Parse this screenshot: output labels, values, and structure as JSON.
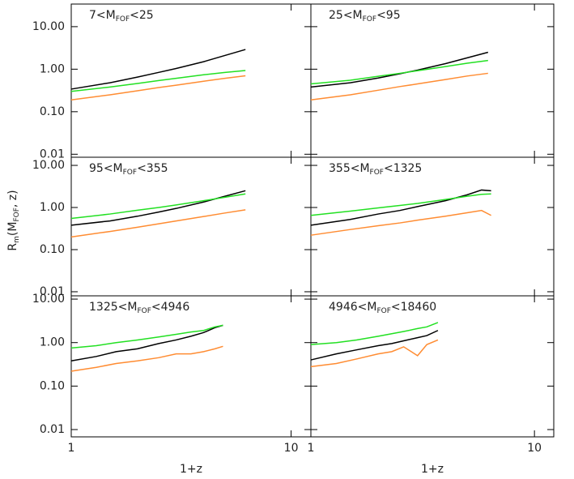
{
  "ylabel": [
    "R",
    "m",
    "(M",
    "FOF",
    ", z)"
  ],
  "chart_data": [
    {
      "type": "line",
      "title": [
        "7<M",
        "FOF",
        "<25"
      ],
      "xscale": "log",
      "yscale": "log",
      "xlim": [
        1,
        12.3
      ],
      "ylim": [
        0.0085,
        34
      ],
      "yticks": [
        {
          "value": 10,
          "label": "10.00"
        },
        {
          "value": 1,
          "label": "1.00"
        },
        {
          "value": 0.1,
          "label": "0.10"
        },
        {
          "value": 0.01,
          "label": "0.01"
        }
      ],
      "x": [
        1,
        1.5,
        2,
        2.5,
        3,
        4,
        5,
        6.2
      ],
      "series": [
        {
          "color": "#000000",
          "values": [
            0.34,
            0.48,
            0.65,
            0.84,
            1.04,
            1.5,
            2.1,
            2.9
          ]
        },
        {
          "color": "#22e022",
          "values": [
            0.3,
            0.38,
            0.46,
            0.54,
            0.61,
            0.74,
            0.84,
            0.93
          ]
        },
        {
          "color": "#ff8c32",
          "values": [
            0.19,
            0.25,
            0.31,
            0.37,
            0.42,
            0.52,
            0.61,
            0.7
          ]
        }
      ]
    },
    {
      "type": "line",
      "title": [
        "25<M",
        "FOF",
        "<95"
      ],
      "xscale": "log",
      "yscale": "log",
      "xlim": [
        1,
        12.2
      ],
      "ylim": [
        0.0085,
        34
      ],
      "x": [
        1,
        1.5,
        2,
        2.5,
        3,
        4,
        5,
        6.2
      ],
      "series": [
        {
          "color": "#000000",
          "values": [
            0.38,
            0.48,
            0.62,
            0.78,
            0.95,
            1.35,
            1.85,
            2.5
          ]
        },
        {
          "color": "#22e022",
          "values": [
            0.45,
            0.55,
            0.68,
            0.8,
            0.92,
            1.15,
            1.38,
            1.6
          ]
        },
        {
          "color": "#ff8c32",
          "values": [
            0.19,
            0.25,
            0.32,
            0.39,
            0.45,
            0.57,
            0.69,
            0.8
          ]
        }
      ]
    },
    {
      "type": "line",
      "title": [
        "95<M",
        "FOF",
        "<355"
      ],
      "xscale": "log",
      "yscale": "log",
      "xlim": [
        1,
        12.3
      ],
      "ylim": [
        0.008,
        15.6
      ],
      "yticks": [
        {
          "value": 10,
          "label": "10.00"
        },
        {
          "value": 1,
          "label": "1.00"
        },
        {
          "value": 0.1,
          "label": "0.10"
        },
        {
          "value": 0.01,
          "label": "0.01"
        }
      ],
      "x": [
        1,
        1.5,
        2,
        2.5,
        3,
        4,
        5,
        6.2
      ],
      "series": [
        {
          "color": "#000000",
          "values": [
            0.38,
            0.48,
            0.62,
            0.78,
            0.95,
            1.35,
            1.85,
            2.5
          ]
        },
        {
          "color": "#22e022",
          "values": [
            0.55,
            0.7,
            0.86,
            1.0,
            1.15,
            1.45,
            1.75,
            2.1
          ]
        },
        {
          "color": "#ff8c32",
          "values": [
            0.2,
            0.27,
            0.34,
            0.41,
            0.48,
            0.61,
            0.74,
            0.88
          ]
        }
      ]
    },
    {
      "type": "line",
      "title": [
        "355<M",
        "FOF",
        "<1325"
      ],
      "xscale": "log",
      "yscale": "log",
      "xlim": [
        1,
        12.2
      ],
      "ylim": [
        0.008,
        15.6
      ],
      "x": [
        1,
        1.5,
        2,
        2.5,
        3,
        4,
        5,
        5.8,
        6.4
      ],
      "series": [
        {
          "color": "#000000",
          "values": [
            0.38,
            0.52,
            0.7,
            0.85,
            1.05,
            1.45,
            2.0,
            2.6,
            2.5
          ]
        },
        {
          "color": "#22e022",
          "values": [
            0.65,
            0.82,
            0.98,
            1.12,
            1.25,
            1.55,
            1.85,
            2.05,
            2.1
          ]
        },
        {
          "color": "#ff8c32",
          "values": [
            0.22,
            0.3,
            0.37,
            0.43,
            0.5,
            0.62,
            0.75,
            0.85,
            0.65
          ]
        }
      ]
    },
    {
      "type": "line",
      "title": [
        "1325<M",
        "FOF",
        "<4946"
      ],
      "xscale": "log",
      "yscale": "log",
      "xlim": [
        1,
        12.3
      ],
      "ylim": [
        0.0068,
        11.9
      ],
      "yticks": [
        {
          "value": 10,
          "label": "10.00"
        },
        {
          "value": 1,
          "label": "1.00"
        },
        {
          "value": 0.1,
          "label": "0.10"
        },
        {
          "value": 0.01,
          "label": "0.01"
        }
      ],
      "xticks": [
        1,
        10
      ],
      "xlabel": "1+z",
      "x": [
        1,
        1.3,
        1.6,
        2,
        2.5,
        3,
        3.5,
        4,
        4.5,
        4.9
      ],
      "series": [
        {
          "color": "#000000",
          "values": [
            0.38,
            0.48,
            0.62,
            0.72,
            0.95,
            1.15,
            1.4,
            1.7,
            2.2,
            2.5
          ]
        },
        {
          "color": "#22e022",
          "values": [
            0.75,
            0.85,
            1.0,
            1.15,
            1.35,
            1.55,
            1.75,
            1.9,
            2.3,
            2.5
          ]
        },
        {
          "color": "#ff8c32",
          "values": [
            0.22,
            0.27,
            0.33,
            0.38,
            0.45,
            0.55,
            0.55,
            0.62,
            0.72,
            0.82
          ]
        }
      ]
    },
    {
      "type": "line",
      "title": [
        "4946<M",
        "FOF",
        "<18460"
      ],
      "xscale": "log",
      "yscale": "log",
      "xlim": [
        1,
        12.2
      ],
      "ylim": [
        0.0068,
        11.9
      ],
      "xticks": [
        1,
        10
      ],
      "xlabel": "1+z",
      "x": [
        1,
        1.3,
        1.6,
        2,
        2.3,
        2.6,
        3,
        3.3,
        3.7
      ],
      "series": [
        {
          "color": "#000000",
          "values": [
            0.4,
            0.55,
            0.68,
            0.85,
            0.95,
            1.1,
            1.3,
            1.45,
            1.9
          ]
        },
        {
          "color": "#22e022",
          "values": [
            0.9,
            1.0,
            1.15,
            1.4,
            1.6,
            1.8,
            2.1,
            2.3,
            2.9
          ]
        },
        {
          "color": "#ff8c32",
          "values": [
            0.28,
            0.33,
            0.42,
            0.55,
            0.62,
            0.8,
            0.5,
            0.9,
            1.15
          ]
        }
      ]
    }
  ]
}
